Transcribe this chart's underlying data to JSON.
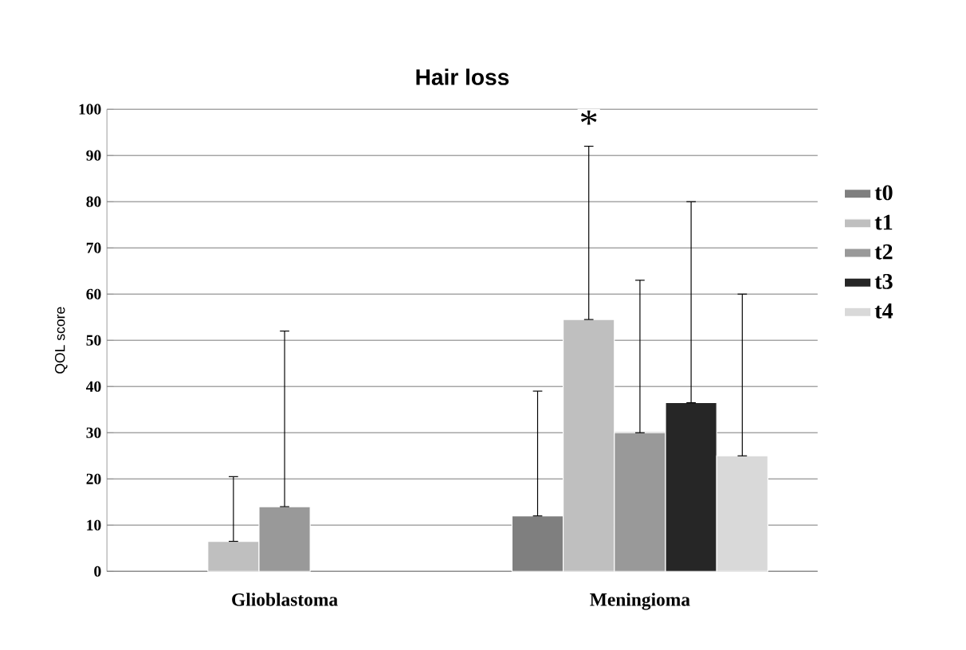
{
  "chart_data": {
    "type": "bar",
    "title": "Hair loss",
    "ylabel": "QOL score",
    "categories": [
      "Glioblastoma",
      "Meningioma"
    ],
    "series": [
      {
        "name": "t0",
        "color": "#7f7f7f",
        "values": [
          null,
          12
        ],
        "errors": [
          null,
          [
            12,
            39
          ]
        ]
      },
      {
        "name": "t1",
        "color": "#bfbfbf",
        "values": [
          6.5,
          54.5
        ],
        "errors": [
          [
            6.5,
            20.5
          ],
          [
            54.5,
            92
          ]
        ]
      },
      {
        "name": "t2",
        "color": "#999999",
        "values": [
          14,
          30
        ],
        "errors": [
          [
            14,
            52
          ],
          [
            30,
            63
          ]
        ]
      },
      {
        "name": "t3",
        "color": "#262626",
        "values": [
          null,
          36.5
        ],
        "errors": [
          null,
          [
            36.5,
            80
          ]
        ]
      },
      {
        "name": "t4",
        "color": "#d9d9d9",
        "values": [
          null,
          25
        ],
        "errors": [
          null,
          [
            25,
            60
          ]
        ]
      }
    ],
    "annotations": [
      "*"
    ],
    "ylim": [
      0,
      100
    ],
    "yticks": [
      0,
      10,
      20,
      30,
      40,
      50,
      60,
      70,
      80,
      90,
      100
    ],
    "grid": "y",
    "legend": "right"
  }
}
